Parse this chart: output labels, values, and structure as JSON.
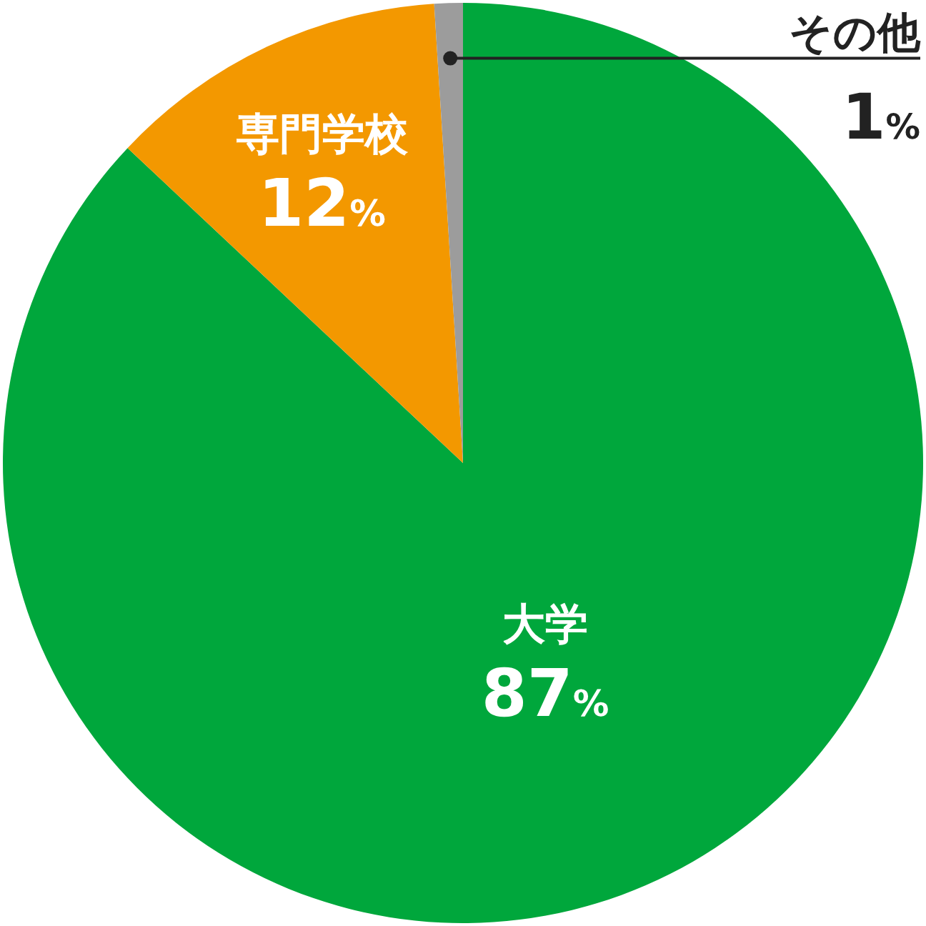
{
  "chart_data": {
    "type": "pie",
    "categories": [
      "大学",
      "専門学校",
      "その他"
    ],
    "values": [
      87,
      12,
      1
    ],
    "colors": [
      "#00a73c",
      "#f39800",
      "#9c9c9c"
    ],
    "value_labels": [
      "87%",
      "12%",
      "1%"
    ]
  }
}
